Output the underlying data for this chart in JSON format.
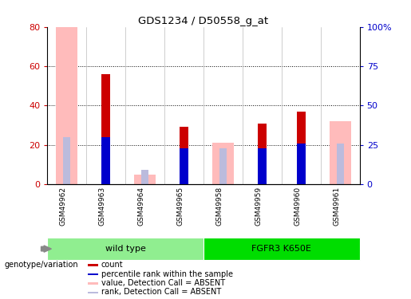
{
  "title": "GDS1234 / D50558_g_at",
  "samples": [
    "GSM49962",
    "GSM49963",
    "GSM49964",
    "GSM49965",
    "GSM49958",
    "GSM49959",
    "GSM49960",
    "GSM49961"
  ],
  "count_values": [
    0,
    56,
    0,
    29,
    0,
    31,
    37,
    0
  ],
  "percentile_rank": [
    0,
    30,
    0,
    23,
    0,
    23,
    26,
    0
  ],
  "absent_value": [
    80,
    0,
    5,
    0,
    21,
    0,
    0,
    32
  ],
  "absent_rank": [
    30,
    0,
    9,
    0,
    23,
    0,
    26,
    26
  ],
  "ylim_left": [
    0,
    80
  ],
  "ylim_right": [
    0,
    100
  ],
  "yticks_left": [
    0,
    20,
    40,
    60,
    80
  ],
  "ytick_labels_left": [
    "0",
    "20",
    "40",
    "60",
    "80"
  ],
  "yticks_right": [
    0,
    25,
    50,
    75,
    100
  ],
  "ytick_labels_right": [
    "0",
    "25",
    "50",
    "75",
    "100%"
  ],
  "groups": [
    {
      "label": "wild type",
      "indices": [
        0,
        1,
        2,
        3
      ],
      "color": "#90EE90"
    },
    {
      "label": "FGFR3 K650E",
      "indices": [
        4,
        5,
        6,
        7
      ],
      "color": "#00DD00"
    }
  ],
  "group_label": "genotype/variation",
  "color_count": "#cc0000",
  "color_rank": "#0000cc",
  "color_absent_value": "#ffbbbb",
  "color_absent_rank": "#bbbbdd",
  "legend_items": [
    {
      "label": "count",
      "color": "#cc0000"
    },
    {
      "label": "percentile rank within the sample",
      "color": "#0000cc"
    },
    {
      "label": "value, Detection Call = ABSENT",
      "color": "#ffbbbb"
    },
    {
      "label": "rank, Detection Call = ABSENT",
      "color": "#bbbbdd"
    }
  ],
  "background_color": "#ffffff",
  "tick_label_color_left": "#cc0000",
  "tick_label_color_right": "#0000cc",
  "sample_box_color": "#d0d0d0"
}
